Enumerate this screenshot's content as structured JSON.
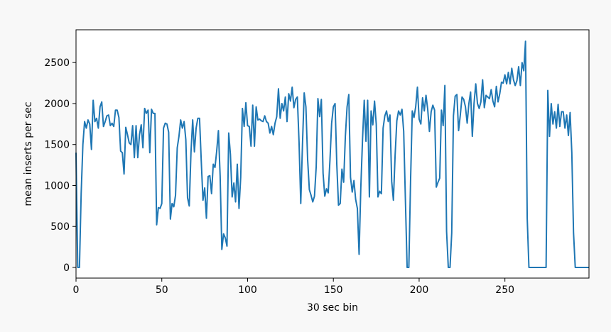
{
  "chart_data": {
    "type": "line",
    "xlabel": "30 sec bin",
    "ylabel": "mean inserts per sec",
    "x": [
      0,
      1,
      2,
      3,
      4,
      5,
      6,
      7,
      8,
      9,
      10,
      11,
      12,
      13,
      14,
      15,
      16,
      17,
      18,
      19,
      20,
      21,
      22,
      23,
      24,
      25,
      26,
      27,
      28,
      29,
      30,
      31,
      32,
      33,
      34,
      35,
      36,
      37,
      38,
      39,
      40,
      41,
      42,
      43,
      44,
      45,
      46,
      47,
      48,
      49,
      50,
      51,
      52,
      53,
      54,
      55,
      56,
      57,
      58,
      59,
      60,
      61,
      62,
      63,
      64,
      65,
      66,
      67,
      68,
      69,
      70,
      71,
      72,
      73,
      74,
      75,
      76,
      77,
      78,
      79,
      80,
      81,
      82,
      83,
      84,
      85,
      86,
      87,
      88,
      89,
      90,
      91,
      92,
      93,
      94,
      95,
      96,
      97,
      98,
      99,
      100,
      101,
      102,
      103,
      104,
      105,
      106,
      107,
      108,
      109,
      110,
      111,
      112,
      113,
      114,
      115,
      116,
      117,
      118,
      119,
      120,
      121,
      122,
      123,
      124,
      125,
      126,
      127,
      128,
      129,
      130,
      131,
      132,
      133,
      134,
      135,
      136,
      137,
      138,
      139,
      140,
      141,
      142,
      143,
      144,
      145,
      146,
      147,
      148,
      149,
      150,
      151,
      152,
      153,
      154,
      155,
      156,
      157,
      158,
      159,
      160,
      161,
      162,
      163,
      164,
      165,
      166,
      167,
      168,
      169,
      170,
      171,
      172,
      173,
      174,
      175,
      176,
      177,
      178,
      179,
      180,
      181,
      182,
      183,
      184,
      185,
      186,
      187,
      188,
      189,
      190,
      191,
      192,
      193,
      194,
      195,
      196,
      197,
      198,
      199,
      200,
      201,
      202,
      203,
      204,
      205,
      206,
      207,
      208,
      209,
      210,
      211,
      212,
      213,
      214,
      215,
      216,
      217,
      218,
      219,
      220,
      221,
      222,
      223,
      224,
      225,
      226,
      227,
      228,
      229,
      230,
      231,
      232,
      233,
      234,
      235,
      236,
      237,
      238,
      239,
      240,
      241,
      242,
      243,
      244,
      245,
      246,
      247,
      248,
      249,
      250,
      251,
      252,
      253,
      254,
      255,
      256,
      257,
      258,
      259,
      260,
      261,
      262,
      263,
      264,
      265,
      266,
      267,
      268,
      269,
      270,
      271,
      272,
      273,
      274,
      275,
      276,
      277,
      278,
      279,
      280,
      281,
      282,
      283,
      284,
      285,
      286,
      287,
      288,
      289,
      290,
      291,
      292,
      293,
      294,
      295,
      296,
      297,
      298,
      299
    ],
    "series": [
      {
        "color": "#1f77b4",
        "values": [
          1400,
          0,
          0,
          900,
          1500,
          1780,
          1700,
          1800,
          1750,
          1440,
          2040,
          1780,
          1820,
          1700,
          1960,
          2020,
          1720,
          1780,
          1850,
          1860,
          1730,
          1760,
          1720,
          1920,
          1920,
          1830,
          1420,
          1400,
          1140,
          1710,
          1620,
          1520,
          1500,
          1730,
          1340,
          1730,
          1340,
          1620,
          1740,
          1460,
          1940,
          1880,
          1920,
          1400,
          1930,
          1880,
          1880,
          520,
          730,
          720,
          780,
          1700,
          1760,
          1750,
          1650,
          590,
          780,
          740,
          880,
          1460,
          1600,
          1800,
          1700,
          1780,
          1560,
          850,
          750,
          1400,
          1800,
          1410,
          1700,
          1820,
          1820,
          1300,
          820,
          970,
          600,
          1110,
          1120,
          900,
          1260,
          1220,
          1420,
          1670,
          1120,
          220,
          410,
          360,
          260,
          1640,
          1380,
          860,
          1030,
          800,
          1260,
          720,
          1100,
          1940,
          1720,
          2010,
          1730,
          1720,
          1480,
          1980,
          1480,
          1960,
          1800,
          1810,
          1790,
          1780,
          1850,
          1780,
          1760,
          1640,
          1720,
          1620,
          1760,
          1840,
          2180,
          1820,
          2000,
          1910,
          2080,
          1780,
          2120,
          2030,
          2200,
          1950,
          2050,
          2080,
          1530,
          780,
          1500,
          2130,
          1960,
          1320,
          950,
          880,
          800,
          870,
          1230,
          2060,
          1840,
          2050,
          1150,
          870,
          960,
          910,
          1300,
          1760,
          1960,
          2000,
          1260,
          760,
          780,
          1200,
          1040,
          1600,
          1960,
          2110,
          1100,
          920,
          1060,
          830,
          720,
          160,
          970,
          1560,
          2040,
          1540,
          2040,
          860,
          1910,
          1740,
          2030,
          1750,
          860,
          930,
          900,
          1700,
          1850,
          1910,
          1780,
          1860,
          1050,
          820,
          1370,
          1790,
          1910,
          1860,
          1930,
          1660,
          820,
          0,
          0,
          1050,
          1910,
          1830,
          1960,
          2200,
          1810,
          1750,
          2070,
          1910,
          2100,
          1930,
          1660,
          1900,
          1980,
          1920,
          980,
          1040,
          1090,
          1920,
          1730,
          2220,
          440,
          0,
          0,
          420,
          1850,
          2090,
          2110,
          1670,
          1860,
          2080,
          2050,
          1960,
          1760,
          2000,
          2140,
          1600,
          2000,
          2240,
          2000,
          1940,
          2020,
          2290,
          1950,
          2100,
          2080,
          2060,
          2170,
          2030,
          1960,
          2210,
          2020,
          2120,
          2260,
          2250,
          2350,
          2240,
          2380,
          2240,
          2430,
          2290,
          2220,
          2280,
          2450,
          2220,
          2500,
          2400,
          2760,
          600,
          0,
          0,
          0,
          0,
          0,
          0,
          0,
          0,
          0,
          0,
          0,
          2160,
          1600,
          2000,
          1750,
          1900,
          1700,
          1990,
          1720,
          1900,
          1900,
          1700,
          1860,
          1610,
          1890,
          1400,
          420,
          0,
          0,
          0,
          0,
          0,
          0,
          0,
          0,
          0
        ]
      }
    ],
    "xlim": [
      0,
      299
    ],
    "xticks": [
      0,
      50,
      100,
      150,
      200,
      250
    ],
    "ylim": [
      -130,
      2900
    ],
    "yticks": [
      0,
      500,
      1000,
      1500,
      2000,
      2500
    ]
  }
}
